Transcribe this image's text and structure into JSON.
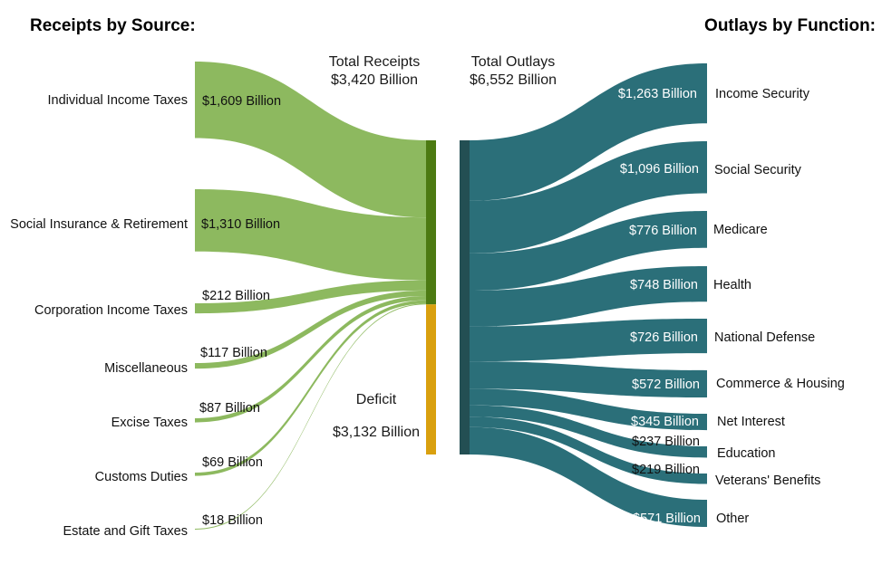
{
  "chart_data": {
    "type": "sankey",
    "left_title": "Receipts by Source:",
    "right_title": "Outlays by Function:",
    "total_receipts": {
      "label": "Total Receipts",
      "value_label": "$3,420 Billion",
      "value": 3420
    },
    "total_outlays": {
      "label": "Total Outlays",
      "value_label": "$6,552 Billion",
      "value": 6552
    },
    "deficit": {
      "label": "Deficit",
      "value_label": "$3,132 Billion",
      "value": 3132
    },
    "receipts": [
      {
        "name": "Individual Income Taxes",
        "value": 1609,
        "value_label": "$1,609 Billion"
      },
      {
        "name": "Social Insurance & Retirement",
        "value": 1310,
        "value_label": "$1,310 Billion"
      },
      {
        "name": "Corporation Income Taxes",
        "value": 212,
        "value_label": "$212 Billion"
      },
      {
        "name": "Miscellaneous",
        "value": 117,
        "value_label": "$117 Billion"
      },
      {
        "name": "Excise Taxes",
        "value": 87,
        "value_label": "$87 Billion"
      },
      {
        "name": "Customs Duties",
        "value": 69,
        "value_label": "$69 Billion"
      },
      {
        "name": "Estate and Gift Taxes",
        "value": 18,
        "value_label": "$18 Billion"
      }
    ],
    "outlays": [
      {
        "name": "Income Security",
        "value": 1263,
        "value_label": "$1,263 Billion"
      },
      {
        "name": "Social Security",
        "value": 1096,
        "value_label": "$1,096 Billion"
      },
      {
        "name": "Medicare",
        "value": 776,
        "value_label": "$776 Billion"
      },
      {
        "name": "Health",
        "value": 748,
        "value_label": "$748 Billion"
      },
      {
        "name": "National Defense",
        "value": 726,
        "value_label": "$726 Billion"
      },
      {
        "name": "Commerce & Housing",
        "value": 572,
        "value_label": "$572 Billion"
      },
      {
        "name": "Net Interest",
        "value": 345,
        "value_label": "$345 Billion"
      },
      {
        "name": "Education",
        "value": 237,
        "value_label": "$237 Billion"
      },
      {
        "name": "Veterans' Benefits",
        "value": 219,
        "value_label": "$219 Billion"
      },
      {
        "name": "Other",
        "value": 571,
        "value_label": "$571 Billion"
      }
    ],
    "colors": {
      "receipts_flow": "#8db95f",
      "receipts_bar": "#4c7a12",
      "deficit_bar": "#d9a00f",
      "outlays_flow": "#2b6f79",
      "outlays_bar": "#234f53"
    }
  }
}
